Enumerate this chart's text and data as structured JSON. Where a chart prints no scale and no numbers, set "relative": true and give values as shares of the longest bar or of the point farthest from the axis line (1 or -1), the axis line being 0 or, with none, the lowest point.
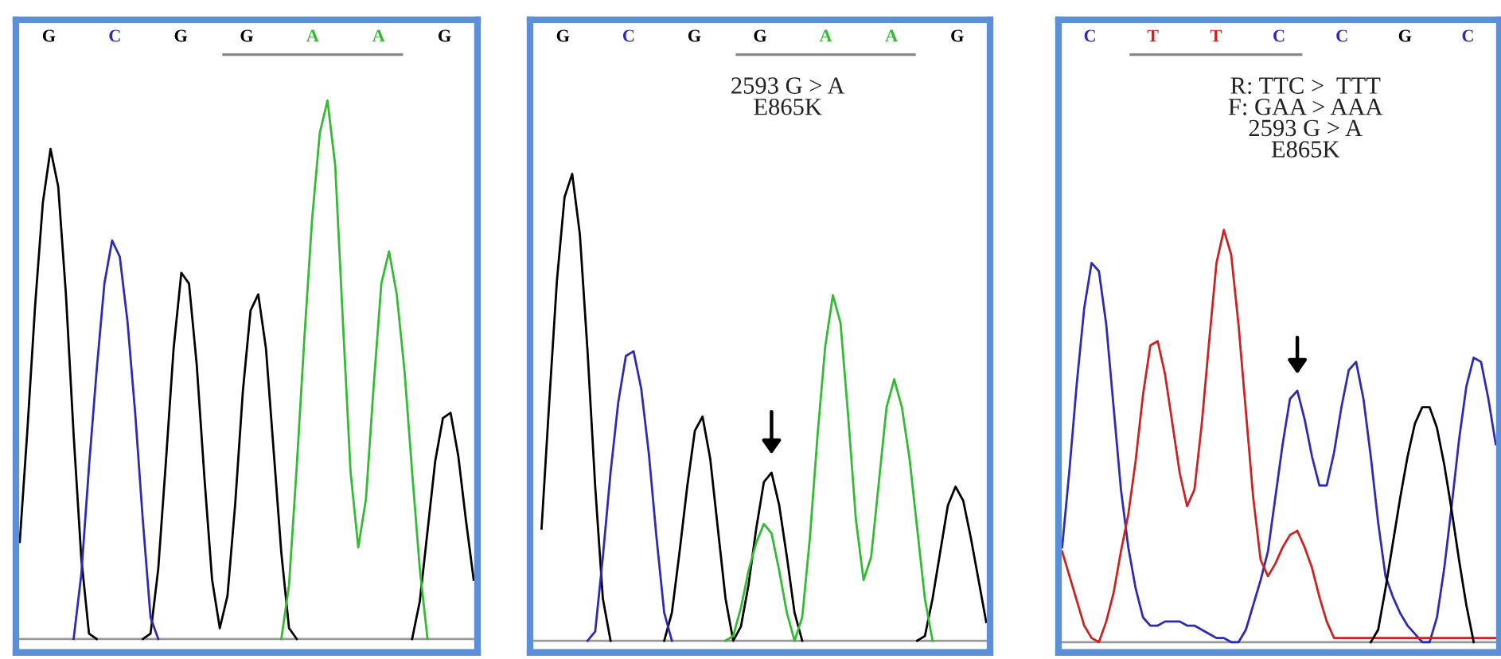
{
  "chart_data": [
    {
      "type": "line",
      "relative": true,
      "categories": [
        null,
        null,
        null,
        null,
        null,
        null,
        null,
        null,
        null,
        null,
        null,
        null,
        null,
        null,
        null,
        null,
        null,
        null,
        null,
        null,
        null,
        null,
        null,
        null,
        null,
        null,
        null,
        null,
        null,
        null,
        null,
        null,
        null,
        null,
        null,
        null,
        null,
        null,
        null,
        null,
        null,
        null,
        null,
        null,
        null,
        null,
        null,
        null,
        null,
        null,
        null,
        null,
        null,
        null,
        null,
        null,
        null,
        null,
        null,
        null
      ],
      "annotations": [
        "G",
        "C",
        "G",
        "G",
        "A",
        "A",
        "G"
      ],
      "series": [
        {
          "color": "#000000",
          "values": [
            0.18,
            0.39,
            0.62,
            0.81,
            0.91,
            0.84,
            0.64,
            0.38,
            0.15,
            0.01,
            0,
            null,
            null,
            null,
            null,
            null,
            0,
            0.01,
            0.13,
            0.33,
            0.54,
            0.68,
            0.66,
            0.51,
            0.3,
            0.11,
            0.02,
            0.08,
            0.25,
            0.46,
            0.61,
            0.64,
            0.54,
            0.35,
            0.16,
            0.02,
            0,
            null,
            null,
            null,
            null,
            null,
            null,
            null,
            null,
            null,
            null,
            null,
            null,
            null,
            null,
            0,
            0.07,
            0.2,
            0.33,
            0.41,
            0.42,
            0.34,
            0.22,
            0.11
          ]
        },
        {
          "color": "#2b2bb8",
          "values": [
            null,
            null,
            null,
            null,
            null,
            null,
            null,
            0,
            0.12,
            0.32,
            0.5,
            0.66,
            0.74,
            0.71,
            0.59,
            0.42,
            0.22,
            0.04,
            0,
            null,
            null,
            null,
            null,
            null,
            null,
            null,
            null,
            null,
            null,
            null,
            null,
            null,
            null,
            null,
            null,
            null,
            null,
            null,
            null,
            null,
            null,
            null,
            null,
            null,
            null,
            null,
            null,
            null,
            null,
            null,
            null,
            null,
            null,
            null,
            null,
            null,
            null,
            null,
            null,
            null
          ]
        },
        {
          "color": "#33bb33",
          "values": [
            null,
            null,
            null,
            null,
            null,
            null,
            null,
            null,
            null,
            null,
            null,
            null,
            null,
            null,
            null,
            null,
            null,
            null,
            null,
            null,
            null,
            null,
            null,
            null,
            null,
            null,
            null,
            null,
            null,
            null,
            null,
            null,
            null,
            null,
            0,
            0.1,
            0.32,
            0.56,
            0.78,
            0.94,
            1.0,
            0.88,
            0.59,
            0.31,
            0.17,
            0.26,
            0.47,
            0.66,
            0.72,
            0.64,
            0.5,
            0.31,
            0.13,
            0,
            null,
            null,
            null,
            null,
            null,
            null
          ]
        }
      ]
    },
    {
      "type": "line",
      "relative": true,
      "categories": [
        null,
        null,
        null,
        null,
        null,
        null,
        null,
        null,
        null,
        null,
        null,
        null,
        null,
        null,
        null,
        null,
        null,
        null,
        null,
        null,
        null,
        null,
        null,
        null,
        null,
        null,
        null,
        null,
        null,
        null,
        null,
        null,
        null,
        null,
        null,
        null,
        null,
        null,
        null,
        null,
        null,
        null,
        null,
        null,
        null,
        null,
        null,
        null,
        null,
        null,
        null,
        null,
        null,
        null,
        null,
        null,
        null,
        null,
        null,
        null
      ],
      "title": "2593 G > A\nE865K",
      "annotations": [
        "G",
        "C",
        "G",
        "G",
        "A",
        "A",
        "G"
      ],
      "series": [
        {
          "color": "#000000",
          "values": [
            null,
            0.24,
            0.51,
            0.77,
            0.95,
            1.0,
            0.87,
            0.62,
            0.33,
            0.09,
            0,
            null,
            null,
            null,
            null,
            null,
            null,
            0,
            0.06,
            0.19,
            0.33,
            0.45,
            0.48,
            0.39,
            0.24,
            0.09,
            0,
            0.03,
            0.12,
            0.24,
            0.34,
            0.36,
            0.29,
            0.18,
            0.06,
            0,
            null,
            null,
            null,
            null,
            null,
            null,
            null,
            null,
            null,
            null,
            null,
            null,
            null,
            null,
            0,
            0.01,
            0.09,
            0.19,
            0.29,
            0.33,
            0.3,
            0.22,
            0.13,
            0.04
          ]
        },
        {
          "color": "#2b2bb8",
          "values": [
            null,
            null,
            null,
            null,
            null,
            null,
            null,
            0,
            0.02,
            0.18,
            0.36,
            0.51,
            0.61,
            0.62,
            0.54,
            0.4,
            0.22,
            0.06,
            0,
            null,
            null,
            null,
            null,
            null,
            null,
            null,
            null,
            null,
            null,
            null,
            null,
            null,
            null,
            null,
            null,
            null,
            null,
            null,
            null,
            null,
            null,
            null,
            null,
            null,
            null,
            null,
            null,
            null,
            null,
            null,
            null,
            null,
            null,
            null,
            null,
            null,
            null,
            null,
            null,
            null
          ]
        },
        {
          "color": "#33bb33",
          "values": [
            null,
            null,
            null,
            null,
            null,
            null,
            null,
            null,
            null,
            null,
            null,
            null,
            null,
            null,
            null,
            null,
            null,
            null,
            null,
            null,
            null,
            null,
            null,
            null,
            null,
            0,
            0.01,
            0.07,
            0.15,
            0.21,
            0.25,
            0.23,
            0.15,
            0.06,
            0,
            0.05,
            0.22,
            0.44,
            0.63,
            0.74,
            0.68,
            0.48,
            0.26,
            0.13,
            0.18,
            0.34,
            0.5,
            0.56,
            0.5,
            0.39,
            0.24,
            0.09,
            0,
            null,
            null,
            null,
            null,
            null,
            null,
            null
          ]
        }
      ]
    },
    {
      "type": "line",
      "relative": true,
      "categories": [
        null,
        null,
        null,
        null,
        null,
        null,
        null,
        null,
        null,
        null,
        null,
        null,
        null,
        null,
        null,
        null,
        null,
        null,
        null,
        null,
        null,
        null,
        null,
        null,
        null,
        null,
        null,
        null,
        null,
        null,
        null,
        null,
        null,
        null,
        null,
        null,
        null,
        null,
        null,
        null,
        null,
        null,
        null,
        null,
        null,
        null,
        null,
        null,
        null,
        null,
        null,
        null,
        null,
        null,
        null,
        null,
        null,
        null,
        null,
        null
      ],
      "title": "R: TTC >  TTT\nF: GAA > AAA\n2593 G > A\nE865K",
      "annotations": [
        "C",
        "T",
        "T",
        "C",
        "C",
        "G",
        "C"
      ],
      "series": [
        {
          "color": "#2b2bb8",
          "values": [
            0.23,
            0.42,
            0.63,
            0.81,
            0.92,
            0.9,
            0.77,
            0.57,
            0.37,
            0.23,
            0.13,
            0.06,
            0.04,
            0.04,
            0.05,
            0.05,
            0.05,
            0.04,
            0.04,
            0.03,
            0.02,
            0.01,
            0.01,
            0,
            0,
            0.03,
            0.09,
            0.15,
            0.22,
            0.35,
            0.48,
            0.59,
            0.61,
            0.54,
            0.45,
            0.38,
            0.38,
            0.46,
            0.57,
            0.66,
            0.68,
            0.59,
            0.45,
            0.29,
            0.16,
            0.11,
            0.07,
            0.04,
            0.02,
            0,
            0,
            0.06,
            0.18,
            0.33,
            0.49,
            0.62,
            0.69,
            0.68,
            0.59,
            0.48
          ]
        },
        {
          "color": "#cc2222",
          "values": [
            0.22,
            0.16,
            0.1,
            0.04,
            0.01,
            0,
            0.05,
            0.12,
            0.22,
            0.31,
            0.44,
            0.6,
            0.72,
            0.73,
            0.65,
            0.53,
            0.41,
            0.33,
            0.37,
            0.53,
            0.73,
            0.92,
            1.0,
            0.94,
            0.77,
            0.56,
            0.35,
            0.2,
            0.16,
            0.19,
            0.23,
            0.26,
            0.27,
            0.23,
            0.18,
            0.11,
            0.05,
            0.01,
            0.01,
            0.01,
            0.01,
            0.01,
            0.01,
            0.01,
            0.01,
            0.01,
            0.01,
            0.01,
            0.01,
            0.01,
            0.01,
            0.01,
            0.01,
            0.01,
            0.01,
            0.01,
            0.01,
            0.01,
            0.01,
            0.01
          ]
        },
        {
          "color": "#000000",
          "values": [
            null,
            null,
            null,
            null,
            null,
            null,
            null,
            null,
            null,
            null,
            null,
            null,
            null,
            null,
            null,
            null,
            null,
            null,
            null,
            null,
            null,
            null,
            null,
            null,
            null,
            null,
            null,
            null,
            null,
            null,
            null,
            null,
            null,
            null,
            null,
            null,
            null,
            null,
            null,
            null,
            null,
            null,
            0,
            0.03,
            0.13,
            0.24,
            0.35,
            0.45,
            0.53,
            0.57,
            0.57,
            0.52,
            0.43,
            0.32,
            0.2,
            0.09,
            0,
            null,
            null,
            null
          ]
        }
      ]
    }
  ]
}
